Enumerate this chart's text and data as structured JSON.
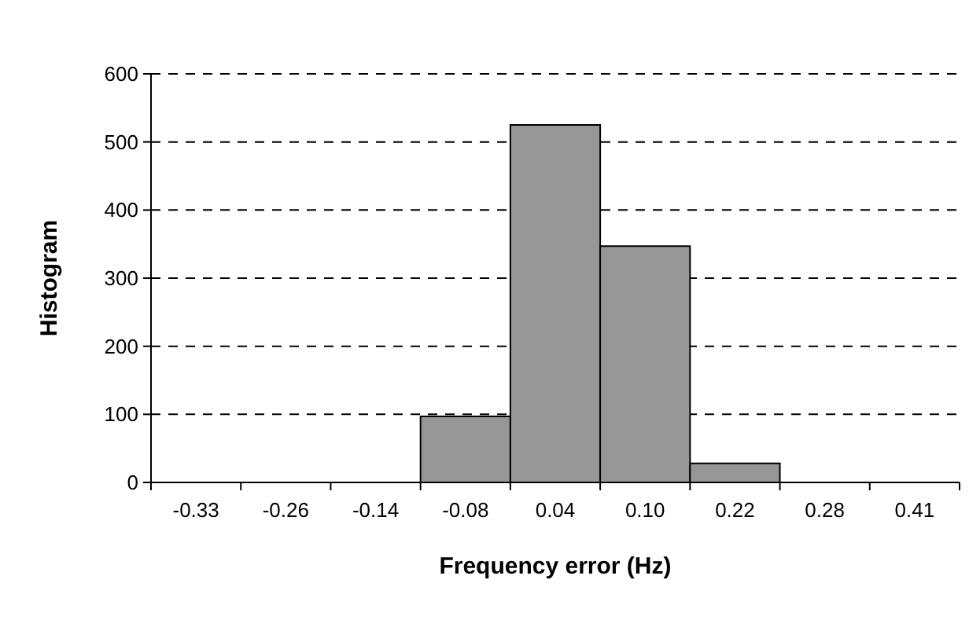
{
  "chart_data": {
    "type": "bar",
    "xlabel": "Frequency error (Hz)",
    "ylabel": "Histogram",
    "categories": [
      "-0.33",
      "-0.26",
      "-0.14",
      "-0.08",
      "0.04",
      "0.10",
      "0.22",
      "0.28",
      "0.41"
    ],
    "values": [
      0,
      0,
      0,
      97,
      525,
      347,
      28,
      0,
      0
    ],
    "color": "#969696",
    "ylim": [
      0,
      600
    ],
    "yticks": [
      0,
      100,
      200,
      300,
      400,
      500,
      600
    ],
    "grid": "y"
  }
}
